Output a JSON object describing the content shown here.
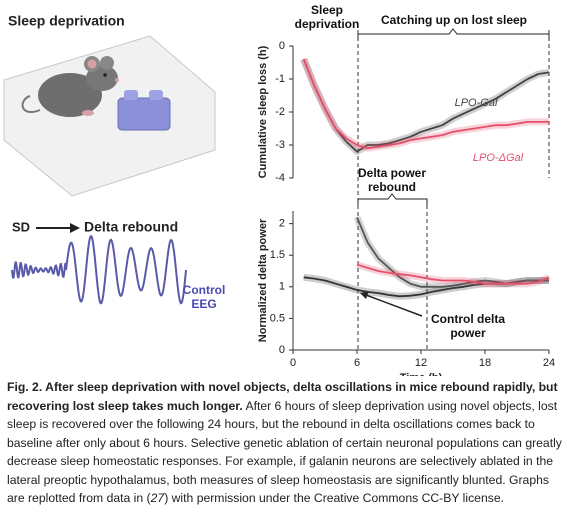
{
  "panel": {
    "title": "Sleep deprivation",
    "sd": "SD",
    "rebound": "Delta rebound",
    "eeg_label": "Control EEG"
  },
  "chart_data": [
    {
      "type": "line",
      "ylabel": "Cumulative sleep loss (h)",
      "xlim": [
        0,
        24
      ],
      "ylim": [
        -4,
        0
      ],
      "yticks": [
        0,
        -1,
        -2,
        -3,
        -4
      ],
      "x": [
        1,
        2,
        3,
        4,
        5,
        6,
        7,
        8,
        9,
        10,
        11,
        12,
        13,
        14,
        15,
        16,
        17,
        18,
        19,
        20,
        21,
        22,
        23,
        24
      ],
      "series": [
        {
          "name": "LPO-Gal",
          "color": "#444444",
          "values": [
            -0.4,
            -1.2,
            -1.9,
            -2.5,
            -2.9,
            -3.2,
            -3.0,
            -3.0,
            -2.95,
            -2.85,
            -2.75,
            -2.6,
            -2.5,
            -2.4,
            -2.2,
            -2.05,
            -1.9,
            -1.75,
            -1.6,
            -1.4,
            -1.2,
            -1.0,
            -0.85,
            -0.8
          ]
        },
        {
          "name": "LPO-ΔGal",
          "color": "#e5506b",
          "values": [
            -0.4,
            -1.2,
            -1.9,
            -2.5,
            -2.8,
            -3.0,
            -3.1,
            -3.05,
            -3.0,
            -2.95,
            -2.85,
            -2.8,
            -2.75,
            -2.7,
            -2.6,
            -2.55,
            -2.5,
            -2.45,
            -2.4,
            -2.4,
            -2.35,
            -2.3,
            -2.3,
            -2.3
          ]
        }
      ],
      "annotations": [
        "Sleep deprivation",
        "Catching up on lost sleep"
      ]
    },
    {
      "type": "line",
      "ylabel": "Normalized delta power",
      "xlabel": "Time (h)",
      "xlim": [
        0,
        24
      ],
      "ylim": [
        0,
        2.2
      ],
      "yticks": [
        0,
        0.5,
        1,
        1.5,
        2
      ],
      "xticks": [
        0,
        6,
        12,
        18,
        24
      ],
      "x": [
        1,
        2,
        3,
        4,
        5,
        6,
        7,
        8,
        9,
        10,
        11,
        12,
        13,
        14,
        15,
        16,
        17,
        18,
        19,
        20,
        21,
        22,
        23,
        24
      ],
      "series": [
        {
          "color": "#333333",
          "values": [
            1.15,
            1.13,
            1.1,
            1.05,
            1.0,
            0.95,
            0.92,
            0.9,
            0.87,
            0.85,
            0.86,
            0.88,
            0.92,
            0.95,
            0.98,
            1.0,
            1.03,
            1.05,
            1.05,
            1.05,
            1.08,
            1.1,
            1.1,
            1.1
          ]
        },
        {
          "color": "#555555",
          "values": [
            null,
            null,
            null,
            null,
            null,
            2.1,
            1.7,
            1.45,
            1.3,
            1.15,
            1.05,
            1.0,
            1.0,
            1.0,
            1.02,
            1.05,
            1.08,
            1.1,
            1.08,
            1.05,
            1.08,
            1.1,
            1.1,
            1.1
          ]
        },
        {
          "color": "#e5506b",
          "values": [
            null,
            null,
            null,
            null,
            null,
            1.35,
            1.3,
            1.25,
            1.22,
            1.2,
            1.18,
            1.15,
            1.12,
            1.1,
            1.1,
            1.1,
            1.08,
            1.05,
            1.05,
            1.05,
            1.05,
            1.05,
            1.08,
            1.15
          ]
        }
      ],
      "annotations": [
        "Delta power rebound",
        "Control delta power"
      ]
    }
  ],
  "caption": {
    "title": "Fig. 2. After sleep deprivation with novel objects, delta oscillations in mice rebound rapidly, but recovering lost sleep takes much longer.",
    "text": "After 6 hours of sleep deprivation using novel objects, lost sleep is recovered over the following 24 hours, but the rebound in delta oscillations comes back to baseline after only about 6 hours. Selective genetic ablation of certain neuronal populations can greatly decrease sleep homeostatic responses. For example, if galanin neurons are selectively ablated in the lateral preoptic hypothalamus, both measures of sleep homeostasis are significantly blunted. Graphs are replotted from data in (",
    "ref": "27",
    "text_end": ") with permission under the Creative Commons CC-BY license."
  }
}
